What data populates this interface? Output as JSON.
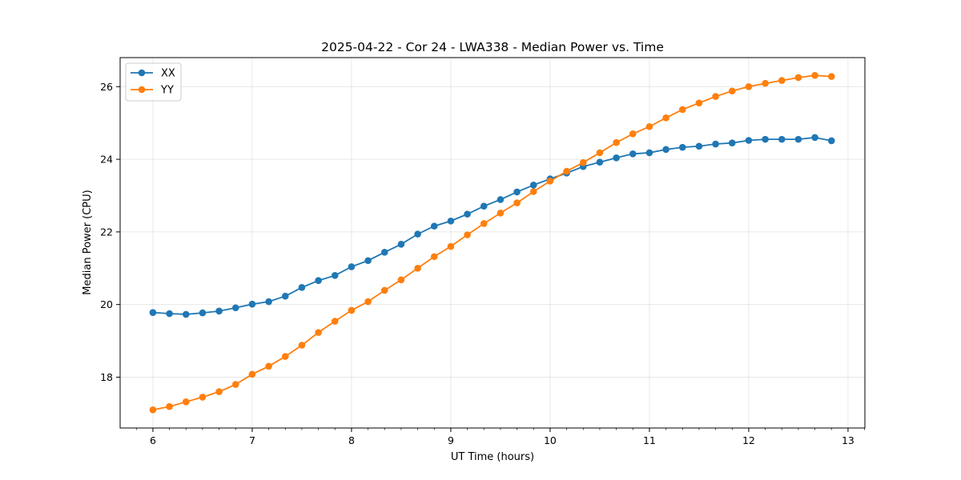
{
  "chart_data": {
    "type": "line",
    "title": "2025-04-22 - Cor 24 - LWA338 - Median Power vs. Time",
    "xlabel": "UT Time (hours)",
    "ylabel": "Median Power (CPU)",
    "xlim": [
      5.67,
      13.17
    ],
    "ylim": [
      16.6,
      26.8
    ],
    "xticks": [
      6,
      7,
      8,
      9,
      10,
      11,
      12,
      13
    ],
    "yticks": [
      18,
      20,
      22,
      24,
      26
    ],
    "grid": true,
    "legend_position": "top-left",
    "x": [
      6.0,
      6.1667,
      6.3333,
      6.5,
      6.6667,
      6.8333,
      7.0,
      7.1667,
      7.3333,
      7.5,
      7.6667,
      7.8333,
      8.0,
      8.1667,
      8.3333,
      8.5,
      8.6667,
      8.8333,
      9.0,
      9.1667,
      9.3333,
      9.5,
      9.6667,
      9.8333,
      10.0,
      10.1667,
      10.3333,
      10.5,
      10.6667,
      10.8333,
      11.0,
      11.1667,
      11.3333,
      11.5,
      11.6667,
      11.8333,
      12.0,
      12.1667,
      12.3333,
      12.5,
      12.6667,
      12.8333
    ],
    "series": [
      {
        "name": "XX",
        "color": "#1f77b4",
        "values": [
          19.78,
          19.75,
          19.73,
          19.77,
          19.82,
          19.91,
          20.01,
          20.08,
          20.23,
          20.47,
          20.66,
          20.8,
          21.04,
          21.21,
          21.44,
          21.66,
          21.94,
          22.16,
          22.3,
          22.49,
          22.71,
          22.89,
          23.1,
          23.29,
          23.46,
          23.62,
          23.8,
          23.92,
          24.04,
          24.15,
          24.18,
          24.27,
          24.33,
          24.36,
          24.42,
          24.45,
          24.52,
          24.55,
          24.55,
          24.55,
          24.6,
          24.51
        ]
      },
      {
        "name": "YY",
        "color": "#ff7f0e",
        "values": [
          17.1,
          17.19,
          17.32,
          17.45,
          17.6,
          17.8,
          18.08,
          18.3,
          18.57,
          18.88,
          19.23,
          19.54,
          19.84,
          20.08,
          20.39,
          20.68,
          21.0,
          21.32,
          21.6,
          21.92,
          22.23,
          22.52,
          22.8,
          23.11,
          23.4,
          23.67,
          23.91,
          24.18,
          24.46,
          24.7,
          24.9,
          25.14,
          25.37,
          25.55,
          25.73,
          25.88,
          26.0,
          26.09,
          26.17,
          26.25,
          26.31,
          26.28
        ]
      }
    ]
  }
}
